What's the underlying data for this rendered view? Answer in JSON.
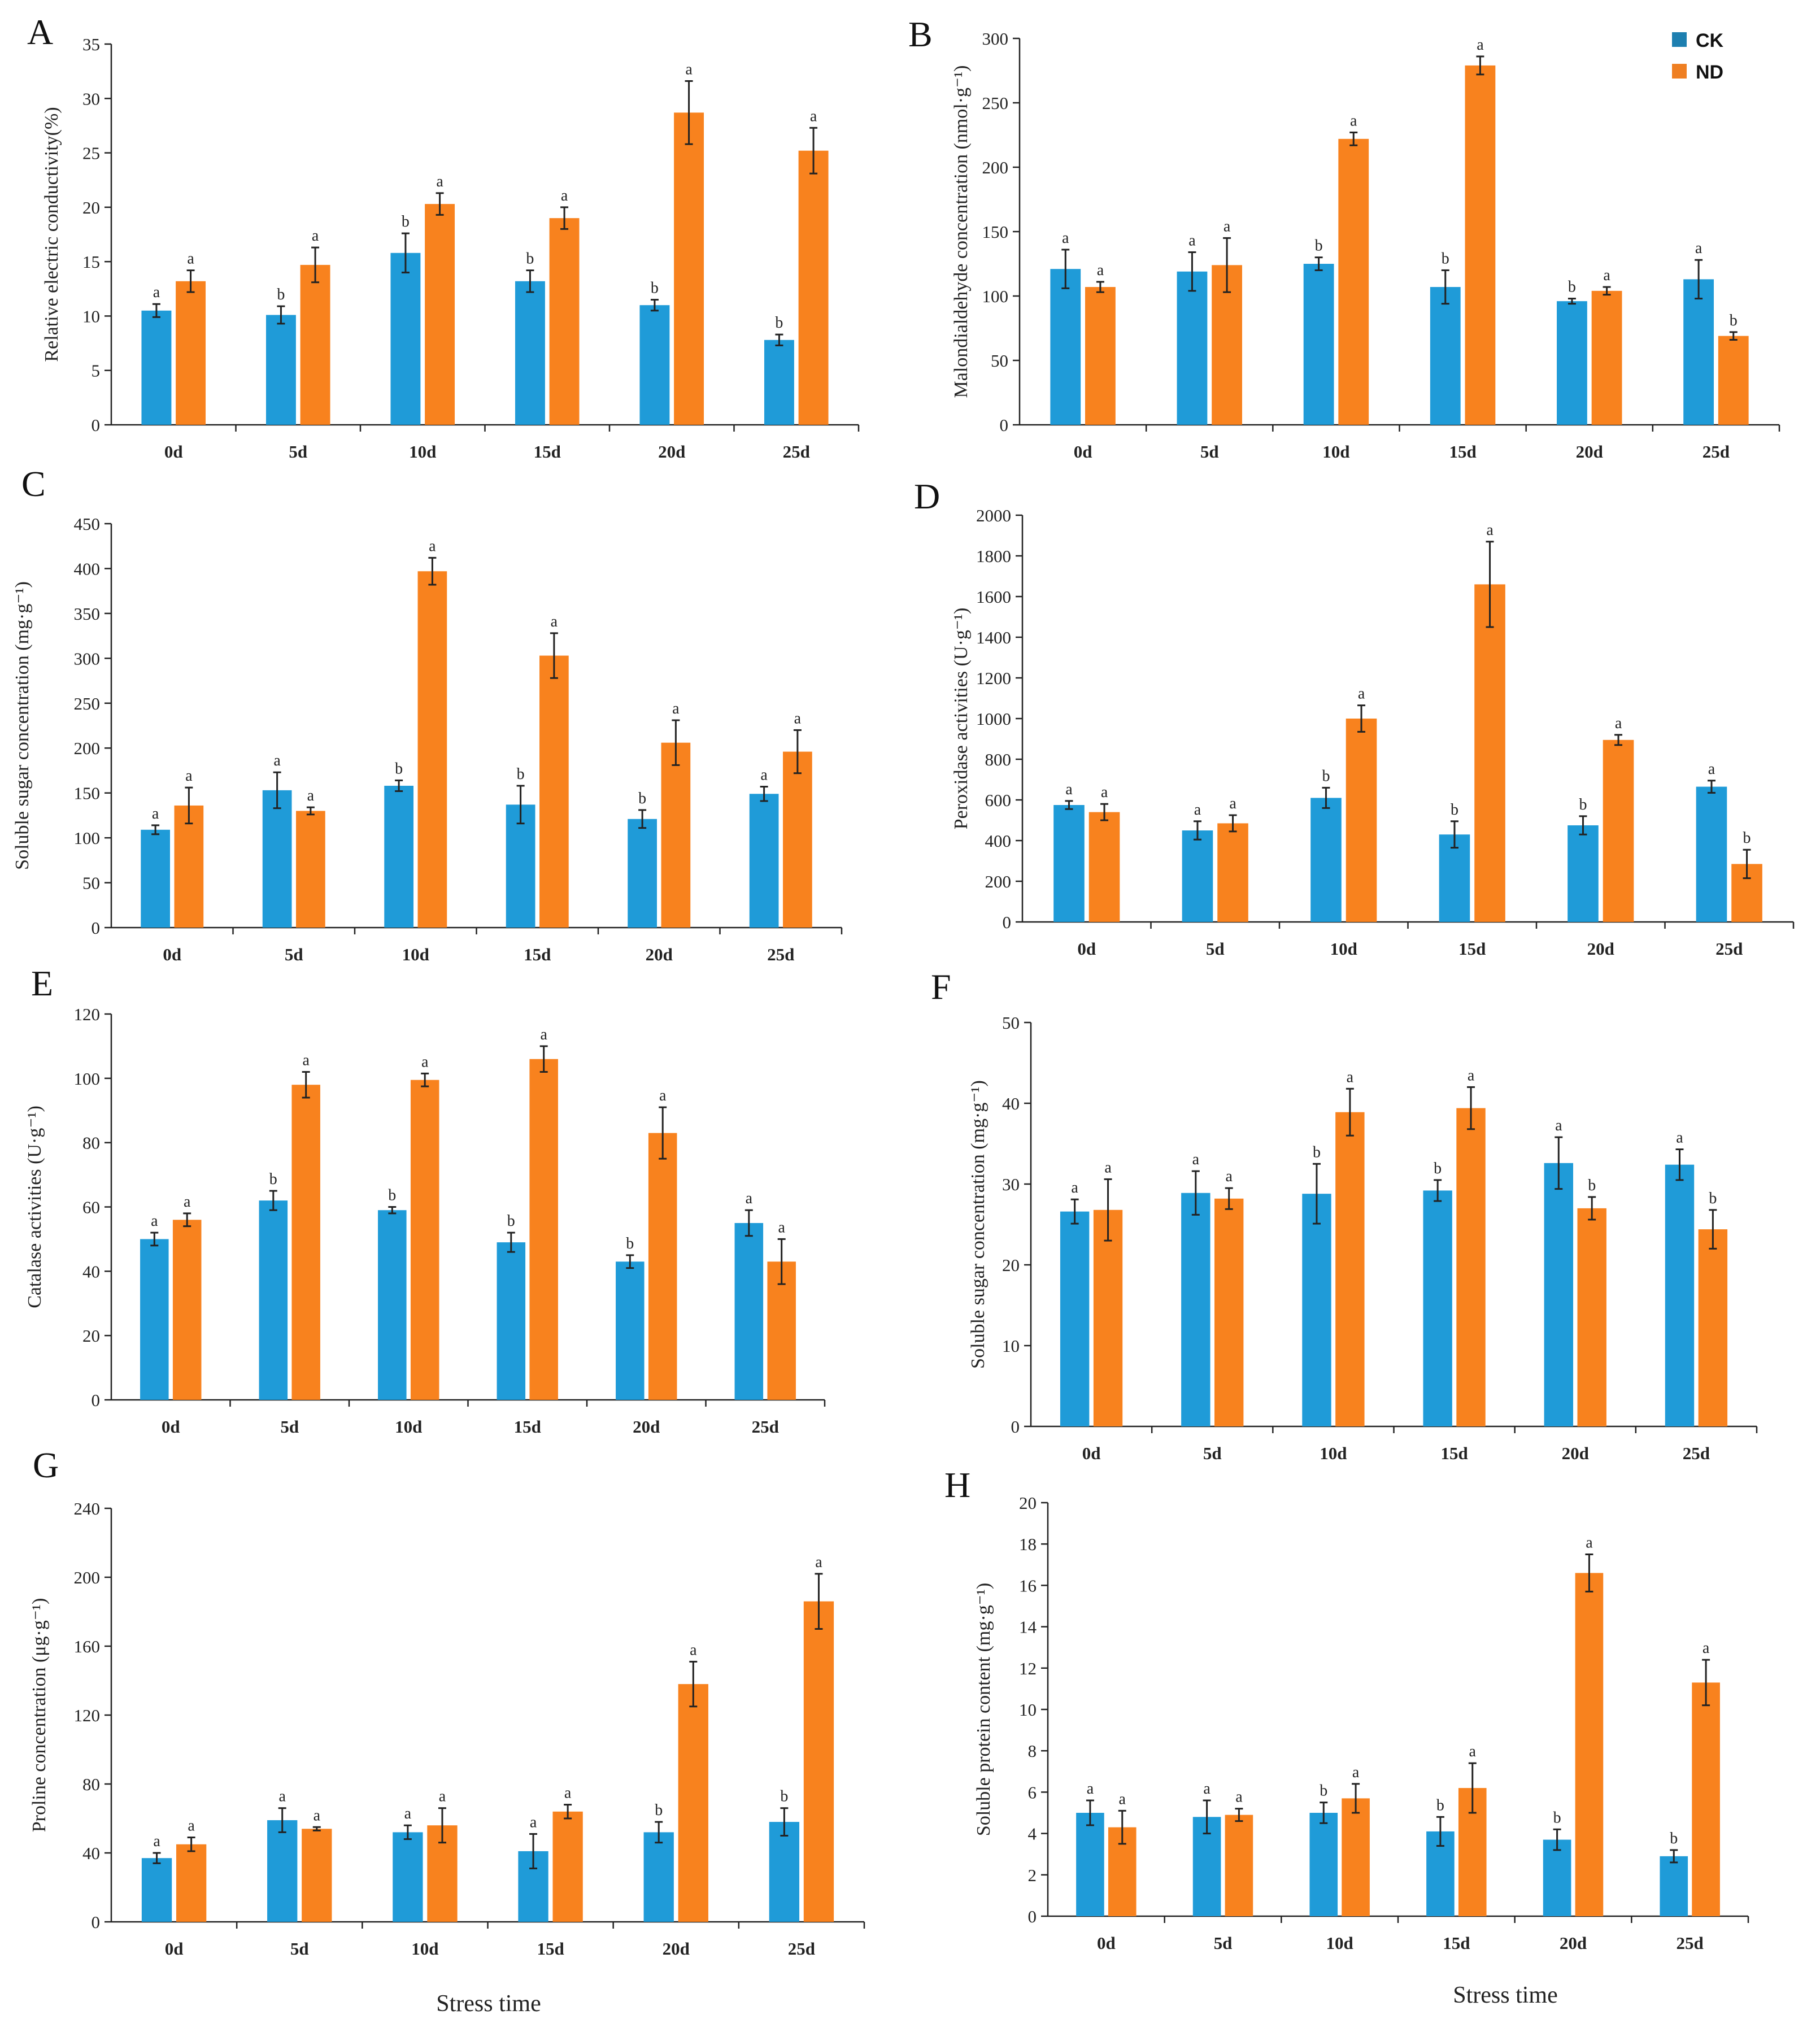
{
  "colors": {
    "ck": "#1f9bd8",
    "nd": "#f8821e",
    "axis": "#222222",
    "legend_ck_swatch": "#1d7fb0",
    "legend_nd_swatch": "#ef7f22"
  },
  "legend": {
    "ck": "CK",
    "nd": "ND"
  },
  "x_title": "Stress time",
  "chart_data": [
    {
      "panel": "A",
      "type": "bar",
      "ylabel": "Relative electric conductivity(%)",
      "categories": [
        "0d",
        "5d",
        "10d",
        "15d",
        "20d",
        "25d"
      ],
      "ylim": [
        0,
        35
      ],
      "yticks": [
        0,
        5,
        10,
        15,
        20,
        25,
        30,
        35
      ],
      "series": [
        {
          "name": "CK",
          "values": [
            10.5,
            10.1,
            15.8,
            13.2,
            11.0,
            7.8
          ],
          "errors": [
            0.6,
            0.8,
            1.8,
            1.0,
            0.5,
            0.5
          ],
          "sig": [
            "a",
            "b",
            "b",
            "b",
            "b",
            "b"
          ]
        },
        {
          "name": "ND",
          "values": [
            13.2,
            14.7,
            20.3,
            19.0,
            28.7,
            25.2
          ],
          "errors": [
            1.0,
            1.6,
            1.0,
            1.0,
            2.9,
            2.1
          ],
          "sig": [
            "a",
            "a",
            "a",
            "a",
            "a",
            "a"
          ]
        }
      ]
    },
    {
      "panel": "B",
      "type": "bar",
      "ylabel": "Malondialdehyde concentration (nmol·g⁻¹)",
      "categories": [
        "0d",
        "5d",
        "10d",
        "15d",
        "20d",
        "25d"
      ],
      "ylim": [
        0,
        300
      ],
      "yticks": [
        0,
        50,
        100,
        150,
        200,
        250,
        300
      ],
      "series": [
        {
          "name": "CK",
          "values": [
            121,
            119,
            125,
            107,
            96,
            113
          ],
          "errors": [
            15,
            15,
            5,
            13,
            2,
            15
          ],
          "sig": [
            "a",
            "a",
            "b",
            "b",
            "b",
            "a"
          ]
        },
        {
          "name": "ND",
          "values": [
            107,
            124,
            222,
            279,
            104,
            69
          ],
          "errors": [
            4,
            21,
            5,
            7,
            3,
            3
          ],
          "sig": [
            "a",
            "a",
            "a",
            "a",
            "a",
            "b"
          ]
        }
      ]
    },
    {
      "panel": "C",
      "type": "bar",
      "ylabel": "Soluble sugar concentration (mg·g⁻¹)",
      "categories": [
        "0d",
        "5d",
        "10d",
        "15d",
        "20d",
        "25d"
      ],
      "ylim": [
        0,
        450
      ],
      "yticks": [
        0,
        50,
        100,
        150,
        200,
        250,
        300,
        350,
        400,
        450
      ],
      "series": [
        {
          "name": "CK",
          "values": [
            109,
            153,
            158,
            137,
            121,
            149
          ],
          "errors": [
            5,
            20,
            6,
            21,
            10,
            8
          ],
          "sig": [
            "a",
            "a",
            "b",
            "b",
            "b",
            "a"
          ]
        },
        {
          "name": "ND",
          "values": [
            136,
            130,
            397,
            303,
            206,
            196
          ],
          "errors": [
            20,
            4,
            15,
            25,
            25,
            24
          ],
          "sig": [
            "a",
            "a",
            "a",
            "a",
            "a",
            "a"
          ]
        }
      ]
    },
    {
      "panel": "D",
      "type": "bar",
      "ylabel": "Peroxidase activities (U·g⁻¹)",
      "categories": [
        "0d",
        "5d",
        "10d",
        "15d",
        "20d",
        "25d"
      ],
      "ylim": [
        0,
        2000
      ],
      "yticks": [
        0,
        200,
        400,
        600,
        800,
        1000,
        1200,
        1400,
        1600,
        1800,
        2000
      ],
      "series": [
        {
          "name": "CK",
          "values": [
            575,
            450,
            610,
            430,
            475,
            665
          ],
          "errors": [
            20,
            45,
            50,
            65,
            45,
            30
          ],
          "sig": [
            "a",
            "a",
            "b",
            "b",
            "b",
            "a"
          ]
        },
        {
          "name": "ND",
          "values": [
            540,
            485,
            1000,
            1660,
            895,
            285
          ],
          "errors": [
            40,
            40,
            65,
            210,
            25,
            70
          ],
          "sig": [
            "a",
            "a",
            "a",
            "a",
            "a",
            "b"
          ]
        }
      ]
    },
    {
      "panel": "E",
      "type": "bar",
      "ylabel": "Catalase activities (U·g⁻¹)",
      "categories": [
        "0d",
        "5d",
        "10d",
        "15d",
        "20d",
        "25d"
      ],
      "ylim": [
        0,
        120
      ],
      "yticks": [
        0,
        20,
        40,
        60,
        80,
        100,
        120
      ],
      "series": [
        {
          "name": "CK",
          "values": [
            50,
            62,
            59,
            49,
            43,
            55
          ],
          "errors": [
            2,
            3,
            1,
            3,
            2,
            4
          ],
          "sig": [
            "a",
            "b",
            "b",
            "b",
            "b",
            "a"
          ]
        },
        {
          "name": "ND",
          "values": [
            56,
            98,
            99.5,
            106,
            83,
            43
          ],
          "errors": [
            2,
            4,
            2,
            4,
            8,
            7
          ],
          "sig": [
            "a",
            "a",
            "a",
            "a",
            "a",
            "a"
          ]
        }
      ]
    },
    {
      "panel": "F",
      "type": "bar",
      "ylabel": "Soluble sugar concentration (mg·g⁻¹)",
      "categories": [
        "0d",
        "5d",
        "10d",
        "15d",
        "20d",
        "25d"
      ],
      "ylim": [
        0,
        50
      ],
      "yticks": [
        0,
        10,
        20,
        30,
        40,
        50
      ],
      "series": [
        {
          "name": "CK",
          "values": [
            26.6,
            28.9,
            28.8,
            29.2,
            32.6,
            32.4
          ],
          "errors": [
            1.5,
            2.7,
            3.7,
            1.3,
            3.2,
            1.9
          ],
          "sig": [
            "a",
            "a",
            "b",
            "b",
            "a",
            "a"
          ]
        },
        {
          "name": "ND",
          "values": [
            26.8,
            28.2,
            38.9,
            39.4,
            27.0,
            24.4
          ],
          "errors": [
            3.8,
            1.3,
            2.9,
            2.6,
            1.4,
            2.4
          ],
          "sig": [
            "a",
            "a",
            "a",
            "a",
            "b",
            "b"
          ]
        }
      ]
    },
    {
      "panel": "G",
      "type": "bar",
      "ylabel": "Proline concentration (μg·g⁻¹)",
      "categories": [
        "0d",
        "5d",
        "10d",
        "15d",
        "20d",
        "25d"
      ],
      "ylim": [
        0,
        240
      ],
      "yticks": [
        0,
        40,
        80,
        120,
        160,
        200,
        240
      ],
      "series": [
        {
          "name": "CK",
          "values": [
            37,
            59,
            52,
            41,
            52,
            58
          ],
          "errors": [
            3,
            7,
            4,
            10,
            6,
            8
          ],
          "sig": [
            "a",
            "a",
            "a",
            "a",
            "b",
            "b"
          ]
        },
        {
          "name": "ND",
          "values": [
            45,
            54,
            56,
            64,
            138,
            186
          ],
          "errors": [
            4,
            1,
            10,
            4,
            13,
            16
          ],
          "sig": [
            "a",
            "a",
            "a",
            "a",
            "a",
            "a"
          ]
        }
      ]
    },
    {
      "panel": "H",
      "type": "bar",
      "ylabel": "Soluble protein content (mg·g⁻¹)",
      "categories": [
        "0d",
        "5d",
        "10d",
        "15d",
        "20d",
        "25d"
      ],
      "ylim": [
        0,
        20
      ],
      "yticks": [
        0,
        2,
        4,
        6,
        8,
        10,
        12,
        14,
        16,
        18,
        20
      ],
      "series": [
        {
          "name": "CK",
          "values": [
            5.0,
            4.8,
            5.0,
            4.1,
            3.7,
            2.9
          ],
          "errors": [
            0.6,
            0.8,
            0.5,
            0.7,
            0.5,
            0.3
          ],
          "sig": [
            "a",
            "a",
            "b",
            "b",
            "b",
            "b"
          ]
        },
        {
          "name": "ND",
          "values": [
            4.3,
            4.9,
            5.7,
            6.2,
            16.6,
            11.3
          ],
          "errors": [
            0.8,
            0.3,
            0.7,
            1.2,
            0.9,
            1.1
          ],
          "sig": [
            "a",
            "a",
            "a",
            "a",
            "a",
            "a"
          ]
        }
      ]
    }
  ]
}
